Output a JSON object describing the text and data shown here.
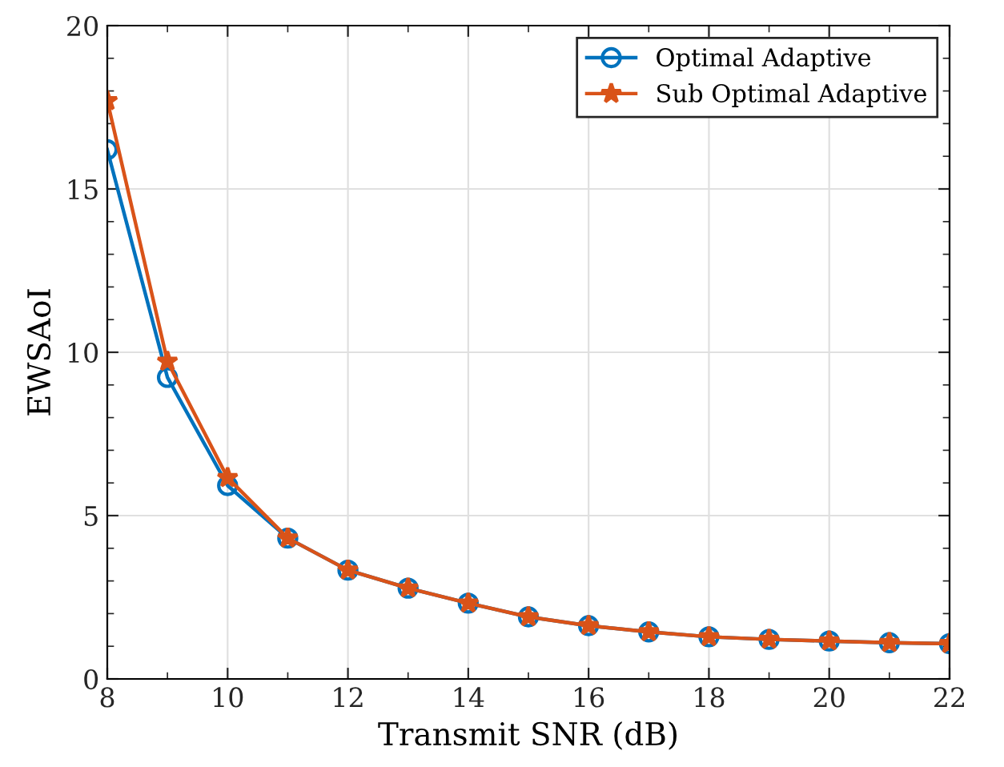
{
  "chart_data": {
    "type": "line",
    "xlabel": "Transmit SNR (dB)",
    "ylabel": "EWSAoI",
    "x": [
      8,
      9,
      10,
      11,
      12,
      13,
      14,
      15,
      16,
      17,
      18,
      19,
      20,
      21,
      22
    ],
    "series": [
      {
        "name": "Optimal Adaptive",
        "color": "#0072bd",
        "marker": "circle",
        "values": [
          16.2,
          9.23,
          5.92,
          4.31,
          3.33,
          2.78,
          2.32,
          1.9,
          1.63,
          1.44,
          1.29,
          1.21,
          1.16,
          1.11,
          1.08
        ]
      },
      {
        "name": "Sub Optimal Adaptive",
        "color": "#d95319",
        "marker": "star",
        "values": [
          17.7,
          9.72,
          6.16,
          4.31,
          3.33,
          2.78,
          2.32,
          1.9,
          1.63,
          1.44,
          1.29,
          1.21,
          1.16,
          1.11,
          1.08
        ]
      }
    ],
    "xlim": [
      8,
      22
    ],
    "xticks": [
      8,
      10,
      12,
      14,
      16,
      18,
      20,
      22
    ],
    "ylim": [
      0,
      20
    ],
    "yticks": [
      0,
      5,
      10,
      15,
      20
    ],
    "grid": true,
    "legend": "top right",
    "line_style": "solid"
  }
}
